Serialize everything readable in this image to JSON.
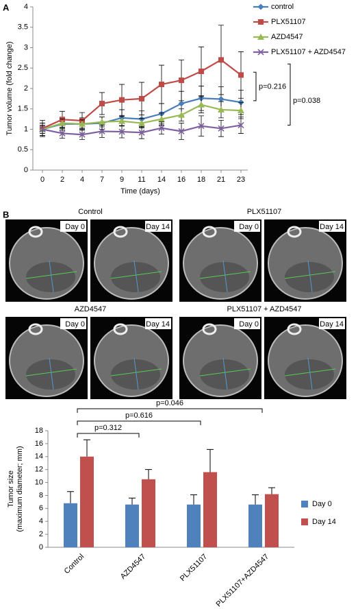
{
  "panel_labels": [
    "A",
    "B"
  ],
  "ct_panels": [
    {
      "title": "Control",
      "days": [
        "Day 0",
        "Day 14"
      ]
    },
    {
      "title": "PLX51107",
      "days": [
        "Day 0",
        "Day 14"
      ]
    },
    {
      "title": "AZD4547",
      "days": [
        "Day 0",
        "Day 14"
      ]
    },
    {
      "title": "PLX51107 + AZD4547",
      "days": [
        "Day 0",
        "Day 14"
      ]
    }
  ],
  "chart_data": [
    {
      "type": "line",
      "xlabel": "Time (days)",
      "ylabel": "Tumor volume (fold change)",
      "categories": [
        "0",
        "2",
        "4",
        "7",
        "9",
        "11",
        "14",
        "16",
        "18",
        "21",
        "23"
      ],
      "ylim": [
        0,
        4
      ],
      "yticks": [
        0,
        0.5,
        1,
        1.5,
        2,
        2.5,
        3,
        3.5,
        4
      ],
      "series": [
        {
          "name": "control",
          "color": "#4a7ebb",
          "marker": "diamond",
          "values": [
            1.0,
            1.13,
            1.13,
            1.15,
            1.28,
            1.25,
            1.38,
            1.63,
            1.76,
            1.74,
            1.66
          ],
          "errors": [
            0.15,
            0.15,
            0.15,
            0.15,
            0.2,
            0.2,
            0.25,
            0.3,
            0.3,
            0.3,
            0.3
          ]
        },
        {
          "name": "PLX51107",
          "color": "#be4b48",
          "marker": "square",
          "values": [
            1.02,
            1.24,
            1.21,
            1.63,
            1.72,
            1.75,
            2.1,
            2.2,
            2.42,
            2.7,
            2.33
          ],
          "errors": [
            0.2,
            0.2,
            0.2,
            0.27,
            0.38,
            0.4,
            0.47,
            0.5,
            0.6,
            0.85,
            0.57
          ]
        },
        {
          "name": "AZD4547",
          "color": "#98b954",
          "marker": "triangle",
          "values": [
            1.0,
            1.15,
            1.13,
            1.18,
            1.2,
            1.15,
            1.25,
            1.35,
            1.6,
            1.48,
            1.46
          ],
          "errors": [
            0.1,
            0.1,
            0.1,
            0.12,
            0.12,
            0.12,
            0.15,
            0.15,
            0.2,
            0.2,
            0.2
          ]
        },
        {
          "name": "PLX51107 + AZD4547",
          "color": "#7d60a0",
          "marker": "x",
          "values": [
            1.0,
            0.9,
            0.87,
            0.95,
            0.94,
            0.92,
            1.03,
            0.95,
            1.08,
            1.02,
            1.1
          ],
          "errors": [
            0.15,
            0.12,
            0.12,
            0.15,
            0.15,
            0.15,
            0.15,
            0.2,
            0.25,
            0.2,
            0.2
          ]
        }
      ],
      "annotations": [
        "p=0.216",
        "p=0.038"
      ]
    },
    {
      "type": "bar",
      "ylabel": [
        "Tumor size",
        "(maximum diameter; mm)"
      ],
      "categories": [
        "Control",
        "AZD4547",
        "PLX51107",
        "PLX51107+AZD4547"
      ],
      "ylim": [
        0,
        18
      ],
      "yticks": [
        0,
        2,
        4,
        6,
        8,
        10,
        12,
        14,
        16,
        18
      ],
      "series": [
        {
          "name": "Day 0",
          "color": "#4f81bd",
          "values": [
            6.8,
            6.6,
            6.6,
            6.6
          ],
          "errors": [
            1.8,
            1.0,
            1.5,
            1.5
          ]
        },
        {
          "name": "Day 14",
          "color": "#c0504d",
          "values": [
            14.0,
            10.5,
            11.6,
            8.2
          ],
          "errors": [
            2.6,
            1.5,
            3.5,
            1.0
          ]
        }
      ],
      "annotations": [
        "p=0.312",
        "p=0.616",
        "p=0.046"
      ]
    }
  ]
}
